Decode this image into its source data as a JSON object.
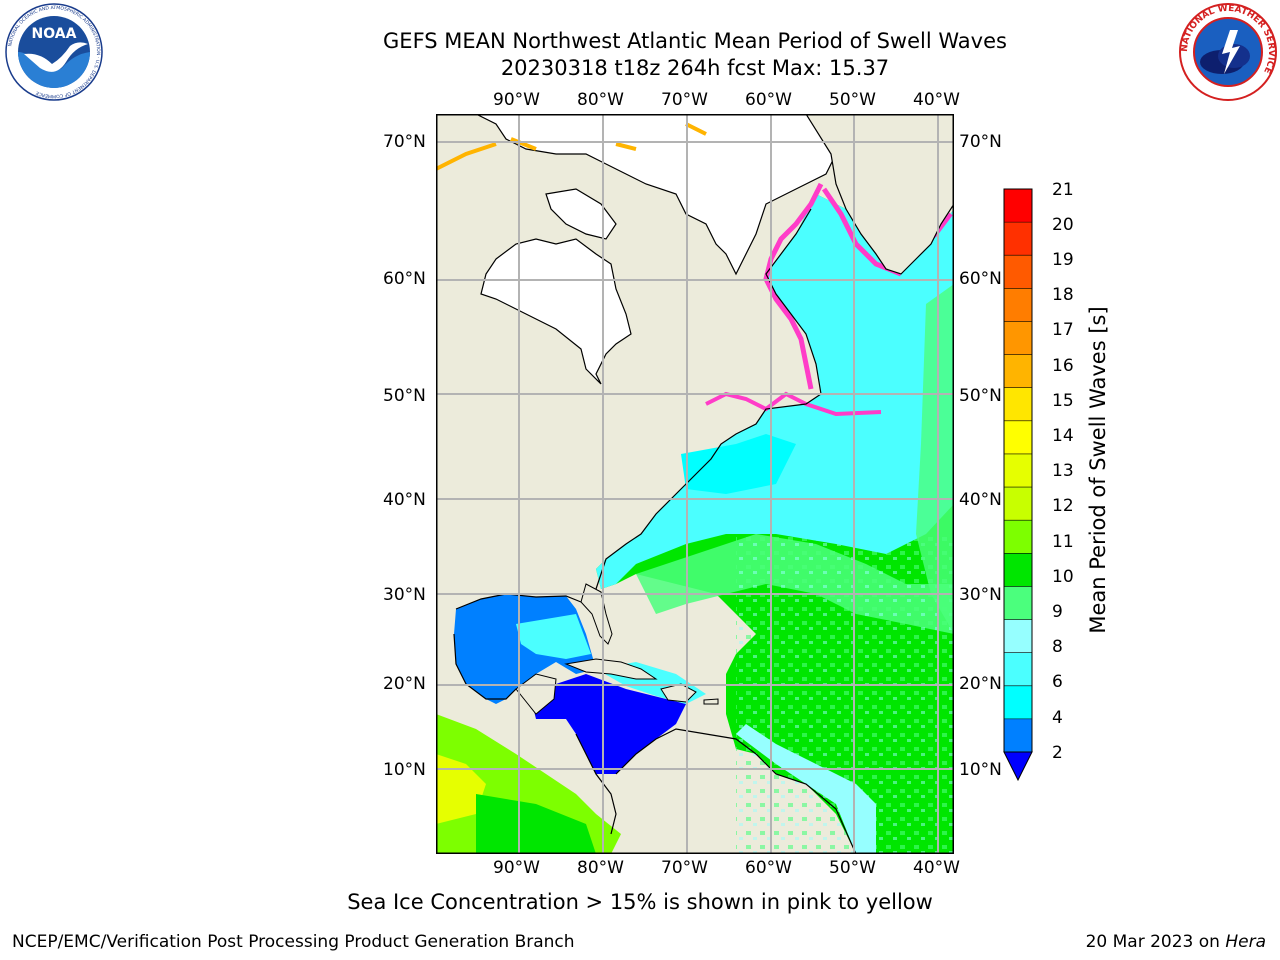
{
  "header": {
    "title_line1": "GEFS MEAN Northwest Atlantic Mean Period of Swell Waves",
    "title_line2": "20230318 t18z 264h fcst   Max: 15.37"
  },
  "logos": {
    "left": {
      "text": "NOAA",
      "ring_text": "NATIONAL OCEANIC AND ATMOSPHERIC ADMINISTRATION · U.S. DEPARTMENT OF COMMERCE"
    },
    "right": {
      "ring_text": "NATIONAL WEATHER SERVICE"
    }
  },
  "map": {
    "lon_labels": [
      "90°W",
      "80°W",
      "70°W",
      "60°W",
      "50°W",
      "40°W"
    ],
    "lat_labels": [
      "70°N",
      "60°N",
      "50°N",
      "40°N",
      "30°N",
      "20°N",
      "10°N"
    ],
    "colors": {
      "land": "#ecebdb",
      "ice_land": "#ffffff",
      "grid": "#b3b3b3"
    }
  },
  "colorbar": {
    "label": "Mean Period of Swell Waves [s]",
    "ticks": [
      "21",
      "20",
      "19",
      "18",
      "17",
      "16",
      "15",
      "14",
      "13",
      "12",
      "11",
      "10",
      "9",
      "8",
      "6",
      "4",
      "2"
    ],
    "colors": [
      "#ff0000",
      "#ff3000",
      "#ff5a00",
      "#ff7d00",
      "#ff9600",
      "#ffb400",
      "#ffe600",
      "#ffff00",
      "#e6ff00",
      "#c8ff00",
      "#7dff00",
      "#00e600",
      "#4bff7d",
      "#96ffff",
      "#4bffff",
      "#00ffff",
      "#0080ff"
    ],
    "extend_color": "#0000ff"
  },
  "notes": {
    "ice": "Sea Ice Concentration > 15% is shown in pink to yellow",
    "footer_left": "NCEP/EMC/Verification Post Processing Product Generation Branch",
    "footer_date": "20 Mar 2023 on",
    "footer_host": "Hera"
  }
}
